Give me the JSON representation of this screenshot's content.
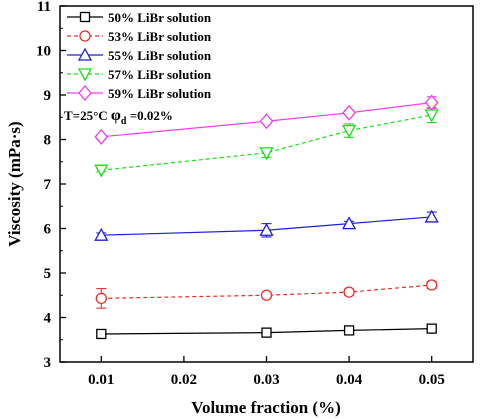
{
  "chart_data": {
    "type": "line",
    "xlabel": "Volume fraction (%)",
    "ylabel": "Viscosity (mPa·s)",
    "xlim": [
      0.005,
      0.055
    ],
    "ylim": [
      3,
      11
    ],
    "xticks": [
      "0.01",
      "0.02",
      "0.03",
      "0.04",
      "0.05"
    ],
    "yticks": [
      "3",
      "4",
      "5",
      "6",
      "7",
      "8",
      "9",
      "10",
      "11"
    ],
    "x": [
      0.01,
      0.03,
      0.04,
      0.05
    ],
    "legend_position": "top-left",
    "annotation": {
      "prefix": "T=25°C  ",
      "symbol": "φ",
      "subscript": "d",
      "suffix": " =0.02%"
    },
    "series": [
      {
        "name": "50% LiBr solution",
        "values": [
          3.63,
          3.66,
          3.71,
          3.75
        ],
        "errors": [
          0.05,
          0.05,
          0.06,
          0.08
        ],
        "color": "#000000",
        "marker": "square",
        "dash": "solid"
      },
      {
        "name": "53% LiBr solution",
        "values": [
          4.43,
          4.5,
          4.57,
          4.73
        ],
        "errors": [
          0.22,
          0.05,
          0.07,
          0.08
        ],
        "color": "#e8302a",
        "marker": "circle",
        "dash": "dashed"
      },
      {
        "name": "55% LiBr solution",
        "values": [
          5.85,
          5.96,
          6.11,
          6.26
        ],
        "errors": [
          0.05,
          0.15,
          0.05,
          0.11
        ],
        "color": "#1f1fd6",
        "marker": "triangle-up",
        "dash": "solid"
      },
      {
        "name": "57% LiBr solution",
        "values": [
          7.31,
          7.7,
          8.2,
          8.55
        ],
        "errors": [
          0.04,
          0.1,
          0.15,
          0.17
        ],
        "color": "#14e014",
        "marker": "triangle-down",
        "dash": "dashed"
      },
      {
        "name": "59% LiBr solution",
        "values": [
          8.06,
          8.41,
          8.6,
          8.83
        ],
        "errors": [
          0.05,
          0.05,
          0.05,
          0.13
        ],
        "color": "#ee3df0",
        "marker": "diamond",
        "dash": "solid"
      }
    ]
  }
}
